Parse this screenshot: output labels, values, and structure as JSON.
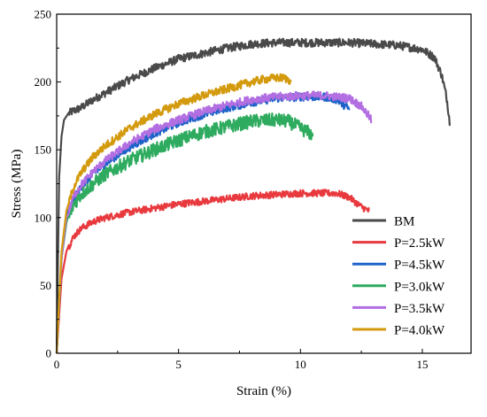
{
  "chart_data": {
    "type": "line",
    "title": "",
    "xlabel": "Strain (%)",
    "ylabel": "Stress (MPa)",
    "xlim": [
      0,
      17
    ],
    "ylim": [
      0,
      250
    ],
    "xticks": [
      0,
      5,
      10,
      15
    ],
    "yticks": [
      0,
      50,
      100,
      150,
      200,
      250
    ],
    "grid": false,
    "legend_position": "bottom-right",
    "series": [
      {
        "name": "BM",
        "color": "#4a4a4a",
        "x": [
          0,
          0.1,
          0.2,
          0.3,
          0.45,
          0.6,
          1.0,
          1.5,
          2,
          3,
          4,
          5,
          6,
          7,
          8,
          9,
          10,
          11,
          12,
          13,
          14,
          15,
          15.5,
          15.8,
          16.0,
          16.1,
          16.12
        ],
        "y": [
          0,
          130,
          160,
          172,
          176,
          178,
          181,
          187,
          192,
          202,
          210,
          217,
          221,
          225,
          228,
          229,
          229,
          229,
          229,
          228,
          227,
          224,
          218,
          205,
          188,
          175,
          170
        ],
        "noise": 3
      },
      {
        "name": "P=2.5kW",
        "color": "#e8393e",
        "x": [
          0,
          0.2,
          0.4,
          0.7,
          1.0,
          1.5,
          2,
          3,
          4,
          5,
          6,
          7,
          8,
          9,
          10,
          11,
          11.5,
          12,
          12.5,
          12.8
        ],
        "y": [
          0,
          55,
          75,
          86,
          92,
          97,
          100,
          104,
          107,
          110,
          112,
          114,
          116,
          117,
          118,
          118,
          118,
          115,
          108,
          105
        ],
        "noise": 2.5
      },
      {
        "name": "P=4.5kW",
        "color": "#1f63c9",
        "x": [
          0,
          0.2,
          0.4,
          0.7,
          1,
          1.5,
          2,
          3,
          4,
          5,
          6,
          7,
          8,
          9,
          10,
          11,
          11.5,
          12
        ],
        "y": [
          0,
          70,
          100,
          114,
          122,
          132,
          140,
          152,
          162,
          170,
          176,
          181,
          185,
          188,
          189,
          189,
          187,
          180
        ],
        "noise": 3
      },
      {
        "name": "P=3.0kW",
        "color": "#2eab5f",
        "x": [
          0,
          0.2,
          0.4,
          0.7,
          1,
          1.5,
          2,
          3,
          4,
          5,
          6,
          7,
          8,
          9,
          9.5,
          10,
          10.5
        ],
        "y": [
          0,
          70,
          96,
          110,
          117,
          125,
          132,
          142,
          150,
          157,
          163,
          167,
          171,
          172,
          171,
          166,
          161
        ],
        "noise": 5
      },
      {
        "name": "P=3.5kW",
        "color": "#b36ee2",
        "x": [
          0,
          0.2,
          0.4,
          0.7,
          1,
          1.5,
          2,
          3,
          4,
          5,
          6,
          7,
          8,
          9,
          10,
          11,
          12,
          12.5,
          12.8,
          12.9
        ],
        "y": [
          0,
          70,
          100,
          116,
          124,
          134,
          142,
          155,
          165,
          172,
          178,
          183,
          187,
          189,
          190,
          190,
          188,
          182,
          175,
          172
        ],
        "noise": 3
      },
      {
        "name": "P=4.0kW",
        "color": "#d49a0e",
        "x": [
          0,
          0.2,
          0.4,
          0.7,
          1,
          1.5,
          2,
          3,
          4,
          5,
          6,
          7,
          8,
          8.5,
          9,
          9.3,
          9.6
        ],
        "y": [
          0,
          75,
          105,
          123,
          133,
          145,
          153,
          166,
          176,
          184,
          190,
          195,
          200,
          202,
          203,
          203,
          201
        ],
        "noise": 3
      }
    ]
  }
}
